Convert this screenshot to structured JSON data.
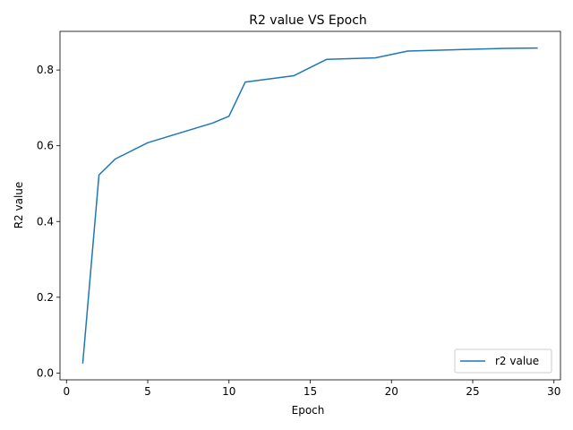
{
  "chart_data": {
    "type": "line",
    "title": "R2 value VS Epoch",
    "xlabel": "Epoch",
    "ylabel": "R2 value",
    "xlim": [
      -0.4,
      30.4
    ],
    "ylim": [
      -0.018,
      0.902
    ],
    "xticks": [
      0,
      5,
      10,
      15,
      20,
      25,
      30
    ],
    "yticks": [
      0.0,
      0.2,
      0.4,
      0.6,
      0.8
    ],
    "grid": false,
    "legend_position": "bottom-right",
    "series": [
      {
        "name": "r2 value",
        "color": "#1f77b4",
        "x": [
          1,
          2,
          3,
          5,
          9,
          10,
          11,
          14,
          16,
          19,
          21,
          27,
          29
        ],
        "y": [
          0.025,
          0.523,
          0.565,
          0.608,
          0.66,
          0.678,
          0.768,
          0.785,
          0.828,
          0.832,
          0.85,
          0.857,
          0.858
        ]
      }
    ]
  }
}
